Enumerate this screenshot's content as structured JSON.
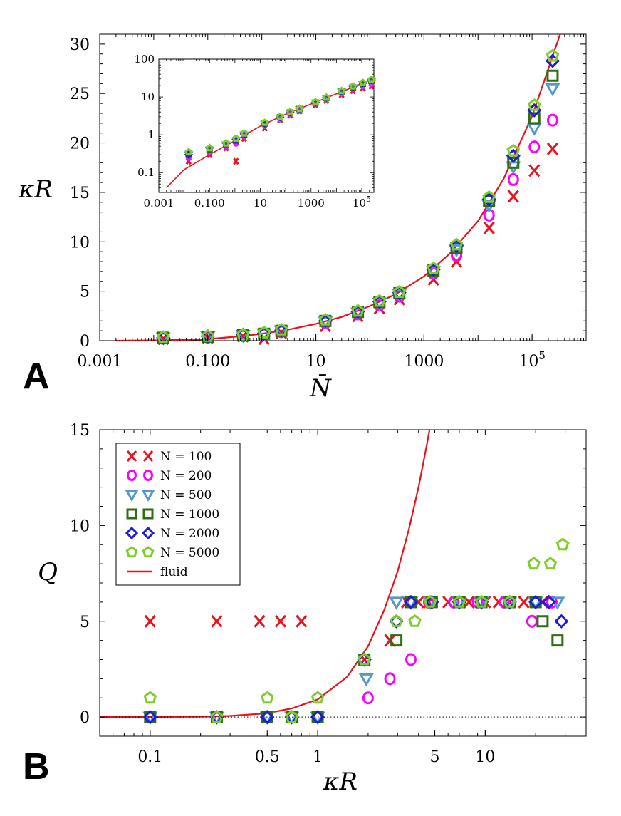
{
  "colors": {
    "N100": "#e8141c",
    "N200": "#ff00ff",
    "N500": "#5599c8",
    "N1000": "#2e6e12",
    "N2000": "#1c1ce0",
    "N5000": "#7fce2c",
    "fluid": "#e8141c"
  },
  "chart_data": [
    {
      "id": "A",
      "type": "scatter",
      "panel_label": "A",
      "xlabel": "N̄",
      "ylabel": "κR",
      "xscale": "log",
      "xlim": [
        0.001,
        1000000
      ],
      "ylim": [
        0,
        31
      ],
      "x_ticks": [
        {
          "value": 0.001,
          "label": "0.001"
        },
        {
          "value": 0.1,
          "label": "0.100"
        },
        {
          "value": 10,
          "label": "10"
        },
        {
          "value": 1000,
          "label": "1000"
        },
        {
          "value": 100000,
          "label": "10",
          "sup": "5"
        }
      ],
      "y_ticks": [
        0,
        5,
        10,
        15,
        20,
        25,
        30
      ],
      "baseline": 0,
      "series": [
        {
          "name": "N = 100",
          "key": "N100",
          "marker": "x",
          "points": [
            [
              0.015,
              0.2
            ],
            [
              0.1,
              0.3
            ],
            [
              0.45,
              0.45
            ],
            [
              1.1,
              0.2
            ],
            [
              2.3,
              0.8
            ],
            [
              15,
              1.5
            ],
            [
              60,
              2.5
            ],
            [
              150,
              3.3
            ],
            [
              350,
              4.2
            ],
            [
              1500,
              6.2
            ],
            [
              4000,
              8.0
            ],
            [
              16000,
              11.4
            ],
            [
              45000,
              14.6
            ],
            [
              110000,
              17.2
            ],
            [
              240000,
              19.4
            ]
          ]
        },
        {
          "name": "N = 200",
          "key": "N200",
          "marker": "circle",
          "points": [
            [
              0.015,
              0.25
            ],
            [
              0.1,
              0.35
            ],
            [
              0.45,
              0.5
            ],
            [
              1.1,
              0.6
            ],
            [
              2.3,
              0.9
            ],
            [
              15,
              1.8
            ],
            [
              60,
              2.7
            ],
            [
              150,
              3.6
            ],
            [
              350,
              4.5
            ],
            [
              1500,
              6.8
            ],
            [
              4000,
              8.6
            ],
            [
              16000,
              12.7
            ],
            [
              45000,
              16.3
            ],
            [
              110000,
              19.6
            ],
            [
              240000,
              22.3
            ]
          ]
        },
        {
          "name": "N = 500",
          "key": "N500",
          "marker": "triangle",
          "points": [
            [
              0.015,
              0.3
            ],
            [
              0.1,
              0.4
            ],
            [
              0.45,
              0.55
            ],
            [
              1.1,
              0.7
            ],
            [
              2.3,
              1.0
            ],
            [
              15,
              1.9
            ],
            [
              60,
              2.8
            ],
            [
              150,
              3.8
            ],
            [
              350,
              4.7
            ],
            [
              1500,
              7.0
            ],
            [
              4000,
              9.2
            ],
            [
              16000,
              13.7
            ],
            [
              45000,
              17.6
            ],
            [
              110000,
              21.5
            ],
            [
              240000,
              25.5
            ]
          ]
        },
        {
          "name": "N = 1000",
          "key": "N1000",
          "marker": "square",
          "points": [
            [
              0.015,
              0.3
            ],
            [
              0.1,
              0.4
            ],
            [
              0.45,
              0.55
            ],
            [
              1.1,
              0.7
            ],
            [
              2.3,
              1.0
            ],
            [
              15,
              2.0
            ],
            [
              60,
              2.9
            ],
            [
              150,
              3.9
            ],
            [
              350,
              4.8
            ],
            [
              1500,
              7.1
            ],
            [
              4000,
              9.4
            ],
            [
              16000,
              14.1
            ],
            [
              45000,
              18.0
            ],
            [
              110000,
              22.5
            ],
            [
              240000,
              26.8
            ]
          ]
        },
        {
          "name": "N = 2000",
          "key": "N2000",
          "marker": "diamond",
          "points": [
            [
              0.015,
              0.3
            ],
            [
              0.1,
              0.45
            ],
            [
              0.45,
              0.6
            ],
            [
              1.1,
              0.75
            ],
            [
              2.3,
              1.05
            ],
            [
              15,
              2.0
            ],
            [
              60,
              2.95
            ],
            [
              150,
              3.95
            ],
            [
              350,
              4.85
            ],
            [
              1500,
              7.2
            ],
            [
              4000,
              9.6
            ],
            [
              16000,
              14.3
            ],
            [
              45000,
              18.7
            ],
            [
              110000,
              23.3
            ],
            [
              240000,
              28.3
            ]
          ]
        },
        {
          "name": "N = 5000",
          "key": "N5000",
          "marker": "pentagon",
          "points": [
            [
              0.015,
              0.35
            ],
            [
              0.1,
              0.45
            ],
            [
              0.45,
              0.6
            ],
            [
              1.1,
              0.8
            ],
            [
              2.3,
              1.1
            ],
            [
              15,
              2.1
            ],
            [
              60,
              3.0
            ],
            [
              150,
              4.0
            ],
            [
              350,
              4.9
            ],
            [
              1500,
              7.3
            ],
            [
              4000,
              9.7
            ],
            [
              16000,
              14.5
            ],
            [
              45000,
              19.2
            ],
            [
              110000,
              23.8
            ],
            [
              240000,
              28.8
            ]
          ]
        }
      ],
      "fluid": {
        "name": "fluid",
        "key": "fluid",
        "points": [
          [
            0.002,
            0
          ],
          [
            0.01,
            0.03
          ],
          [
            0.05,
            0.1
          ],
          [
            0.1,
            0.15
          ],
          [
            0.5,
            0.5
          ],
          [
            1,
            0.7
          ],
          [
            3,
            1.1
          ],
          [
            10,
            1.7
          ],
          [
            30,
            2.4
          ],
          [
            100,
            3.5
          ],
          [
            300,
            4.7
          ],
          [
            1000,
            6.5
          ],
          [
            3000,
            8.8
          ],
          [
            10000,
            12.1
          ],
          [
            30000,
            16.4
          ],
          [
            100000,
            22.7
          ],
          [
            200000,
            27.5
          ],
          [
            330000,
            31.0
          ]
        ]
      },
      "inset": {
        "xscale": "log",
        "yscale": "log",
        "xlim": [
          0.001,
          300000
        ],
        "ylim": [
          0.03,
          100
        ],
        "x_ticks": [
          {
            "value": 0.001,
            "label": "0.001"
          },
          {
            "value": 0.1,
            "label": "0.100"
          },
          {
            "value": 10,
            "label": "10"
          },
          {
            "value": 1000,
            "label": "1000"
          },
          {
            "value": 100000,
            "label": "10",
            "sup": "5"
          }
        ],
        "y_ticks": [
          {
            "value": 0.1,
            "label": "0.1"
          },
          {
            "value": 1,
            "label": "1"
          },
          {
            "value": 10,
            "label": "10"
          },
          {
            "value": 100,
            "label": "100"
          }
        ],
        "fluid_points": [
          [
            0.002,
            0.04
          ],
          [
            0.01,
            0.12
          ],
          [
            0.1,
            0.3
          ],
          [
            1,
            0.7
          ],
          [
            10,
            1.7
          ],
          [
            100,
            3.5
          ],
          [
            1000,
            6.5
          ],
          [
            10000,
            12.1
          ],
          [
            100000,
            22.7
          ],
          [
            200000,
            27.5
          ]
        ]
      }
    },
    {
      "id": "B",
      "type": "scatter",
      "panel_label": "B",
      "xlabel": "κR",
      "ylabel": "Q",
      "xscale": "log",
      "xlim": [
        0.05,
        40
      ],
      "ylim": [
        -1,
        15
      ],
      "x_ticks": [
        {
          "value": 0.1,
          "label": "0.1"
        },
        {
          "value": 0.5,
          "label": "0.5"
        },
        {
          "value": 1,
          "label": "1"
        },
        {
          "value": 5,
          "label": "5"
        },
        {
          "value": 10,
          "label": "10"
        }
      ],
      "y_ticks": [
        0,
        5,
        10,
        15
      ],
      "baseline": 0,
      "series": [
        {
          "name": "N = 100",
          "key": "N100",
          "marker": "x",
          "points": [
            [
              0.1,
              5
            ],
            [
              0.25,
              5
            ],
            [
              0.45,
              5
            ],
            [
              0.6,
              5
            ],
            [
              0.8,
              5
            ],
            [
              1.9,
              3
            ],
            [
              2.7,
              4
            ],
            [
              3.4,
              6
            ],
            [
              4,
              6
            ],
            [
              4.6,
              6
            ],
            [
              6,
              6
            ],
            [
              8,
              6
            ],
            [
              10,
              6
            ],
            [
              12,
              6
            ],
            [
              14,
              6
            ],
            [
              17,
              6
            ],
            [
              22,
              6
            ]
          ]
        },
        {
          "name": "N = 200",
          "key": "N200",
          "marker": "circle",
          "points": [
            [
              0.1,
              0
            ],
            [
              0.25,
              0
            ],
            [
              0.5,
              0
            ],
            [
              0.7,
              0
            ],
            [
              1,
              0
            ],
            [
              2,
              1
            ],
            [
              2.7,
              2
            ],
            [
              3.6,
              3
            ],
            [
              4.6,
              6
            ],
            [
              6.5,
              6
            ],
            [
              9,
              6
            ],
            [
              13,
              6
            ],
            [
              19,
              5
            ],
            [
              25,
              6
            ]
          ]
        },
        {
          "name": "N = 500",
          "key": "N500",
          "marker": "triangle",
          "points": [
            [
              0.1,
              0
            ],
            [
              0.25,
              0
            ],
            [
              0.5,
              0
            ],
            [
              0.7,
              0
            ],
            [
              1,
              0
            ],
            [
              1.95,
              2
            ],
            [
              2.95,
              6
            ],
            [
              3.6,
              6
            ],
            [
              4.7,
              6
            ],
            [
              7,
              6
            ],
            [
              9.5,
              6
            ],
            [
              14,
              6
            ],
            [
              20,
              6
            ],
            [
              27,
              6
            ]
          ]
        },
        {
          "name": "N = 1000",
          "key": "N1000",
          "marker": "square",
          "points": [
            [
              0.1,
              0
            ],
            [
              0.25,
              0
            ],
            [
              0.5,
              0
            ],
            [
              0.7,
              0
            ],
            [
              1,
              0
            ],
            [
              1.9,
              3
            ],
            [
              2.95,
              4
            ],
            [
              3.6,
              6
            ],
            [
              4.8,
              6
            ],
            [
              7,
              6
            ],
            [
              9.5,
              6
            ],
            [
              14,
              6
            ],
            [
              20,
              6
            ],
            [
              22,
              5
            ],
            [
              27,
              4
            ]
          ]
        },
        {
          "name": "N = 2000",
          "key": "N2000",
          "marker": "diamond",
          "points": [
            [
              0.1,
              0
            ],
            [
              0.25,
              0
            ],
            [
              0.5,
              0
            ],
            [
              0.7,
              0
            ],
            [
              1,
              0
            ],
            [
              1.9,
              3
            ],
            [
              2.95,
              5
            ],
            [
              3.6,
              6
            ],
            [
              4.8,
              6
            ],
            [
              7,
              6
            ],
            [
              9.5,
              6
            ],
            [
              14,
              6
            ],
            [
              20,
              6
            ],
            [
              24,
              6
            ],
            [
              28.5,
              5
            ]
          ]
        },
        {
          "name": "N = 5000",
          "key": "N5000",
          "marker": "pentagon",
          "points": [
            [
              0.1,
              1
            ],
            [
              0.25,
              0
            ],
            [
              0.5,
              1
            ],
            [
              0.7,
              0
            ],
            [
              1,
              1
            ],
            [
              1.9,
              3
            ],
            [
              2.95,
              5
            ],
            [
              3.8,
              5
            ],
            [
              4.7,
              6
            ],
            [
              7,
              6
            ],
            [
              9.5,
              6
            ],
            [
              14,
              6
            ],
            [
              19.5,
              8
            ],
            [
              24.5,
              8
            ],
            [
              29,
              9
            ]
          ]
        }
      ],
      "fluid": {
        "name": "fluid",
        "key": "fluid",
        "points": [
          [
            0.05,
            0
          ],
          [
            0.1,
            0.003
          ],
          [
            0.2,
            0.02
          ],
          [
            0.3,
            0.06
          ],
          [
            0.5,
            0.2
          ],
          [
            0.7,
            0.45
          ],
          [
            1,
            0.92
          ],
          [
            1.5,
            2.1
          ],
          [
            2,
            3.7
          ],
          [
            2.5,
            5.6
          ],
          [
            3,
            7.6
          ],
          [
            3.5,
            9.8
          ],
          [
            4,
            12.0
          ],
          [
            4.5,
            14.3
          ],
          [
            4.65,
            15
          ]
        ]
      },
      "legend": {
        "position": "top-left",
        "entries": [
          {
            "key": "N100",
            "marker": "x",
            "label": "N = 100"
          },
          {
            "key": "N200",
            "marker": "circle",
            "label": "N = 200"
          },
          {
            "key": "N500",
            "marker": "triangle",
            "label": "N = 500"
          },
          {
            "key": "N1000",
            "marker": "square",
            "label": "N = 1000"
          },
          {
            "key": "N2000",
            "marker": "diamond",
            "label": "N = 2000"
          },
          {
            "key": "N5000",
            "marker": "pentagon",
            "label": "N = 5000"
          },
          {
            "key": "fluid",
            "marker": "line",
            "label": "fluid"
          }
        ]
      }
    }
  ]
}
